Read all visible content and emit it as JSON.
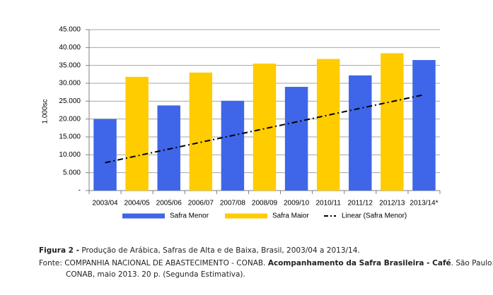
{
  "chart_data": {
    "type": "bar",
    "categories": [
      "2003/04",
      "2004/05",
      "2005/06",
      "2006/07",
      "2007/08",
      "2008/09",
      "2009/10",
      "2010/11",
      "2011/12",
      "2012/13",
      "2013/14*"
    ],
    "y_label": "1.000sc",
    "series": [
      {
        "name": "Safra Menor",
        "color": "#3f66e8",
        "values": [
          20000,
          null,
          23800,
          null,
          25100,
          null,
          29000,
          null,
          32200,
          null,
          36500
        ]
      },
      {
        "name": "Safra Maior",
        "color": "#ffcc00",
        "values": [
          null,
          31800,
          null,
          33000,
          null,
          35500,
          null,
          36800,
          null,
          38400,
          null
        ]
      },
      {
        "name": "Linear (Safra Menor)",
        "type": "line",
        "color": "#000000",
        "values": [
          7800,
          9700,
          11600,
          13500,
          15400,
          17300,
          19200,
          21100,
          23000,
          24900,
          26800
        ]
      }
    ],
    "ylim": [
      0,
      45000
    ],
    "yticks": [
      {
        "value": 0,
        "label": "-"
      },
      {
        "value": 5000,
        "label": "5.000"
      },
      {
        "value": 10000,
        "label": "10.000"
      },
      {
        "value": 15000,
        "label": "15.000"
      },
      {
        "value": 20000,
        "label": "20.000"
      },
      {
        "value": 25000,
        "label": "25.000"
      },
      {
        "value": 30000,
        "label": "30.000"
      },
      {
        "value": 35000,
        "label": "35.000"
      },
      {
        "value": 40000,
        "label": "40.000"
      },
      {
        "value": 45000,
        "label": "45.000"
      }
    ],
    "grid": true,
    "legend": "bottom"
  },
  "caption": {
    "label": "Figura 2 -",
    "text": "Produção de Arábica, Safras de Alta e de Baixa, Brasil, 2003/04 a 2013/14."
  },
  "source": {
    "label": "Fonte:",
    "text1": "COMPANHIA NACIONAL DE ABASTECIMENTO - CONAB.",
    "title": "Acompanhamento da Safra Brasileira - Café",
    "text2": ". São Paulo:",
    "text3": "CONAB, maio 2013. 20 p. (Segunda Estimativa)."
  }
}
